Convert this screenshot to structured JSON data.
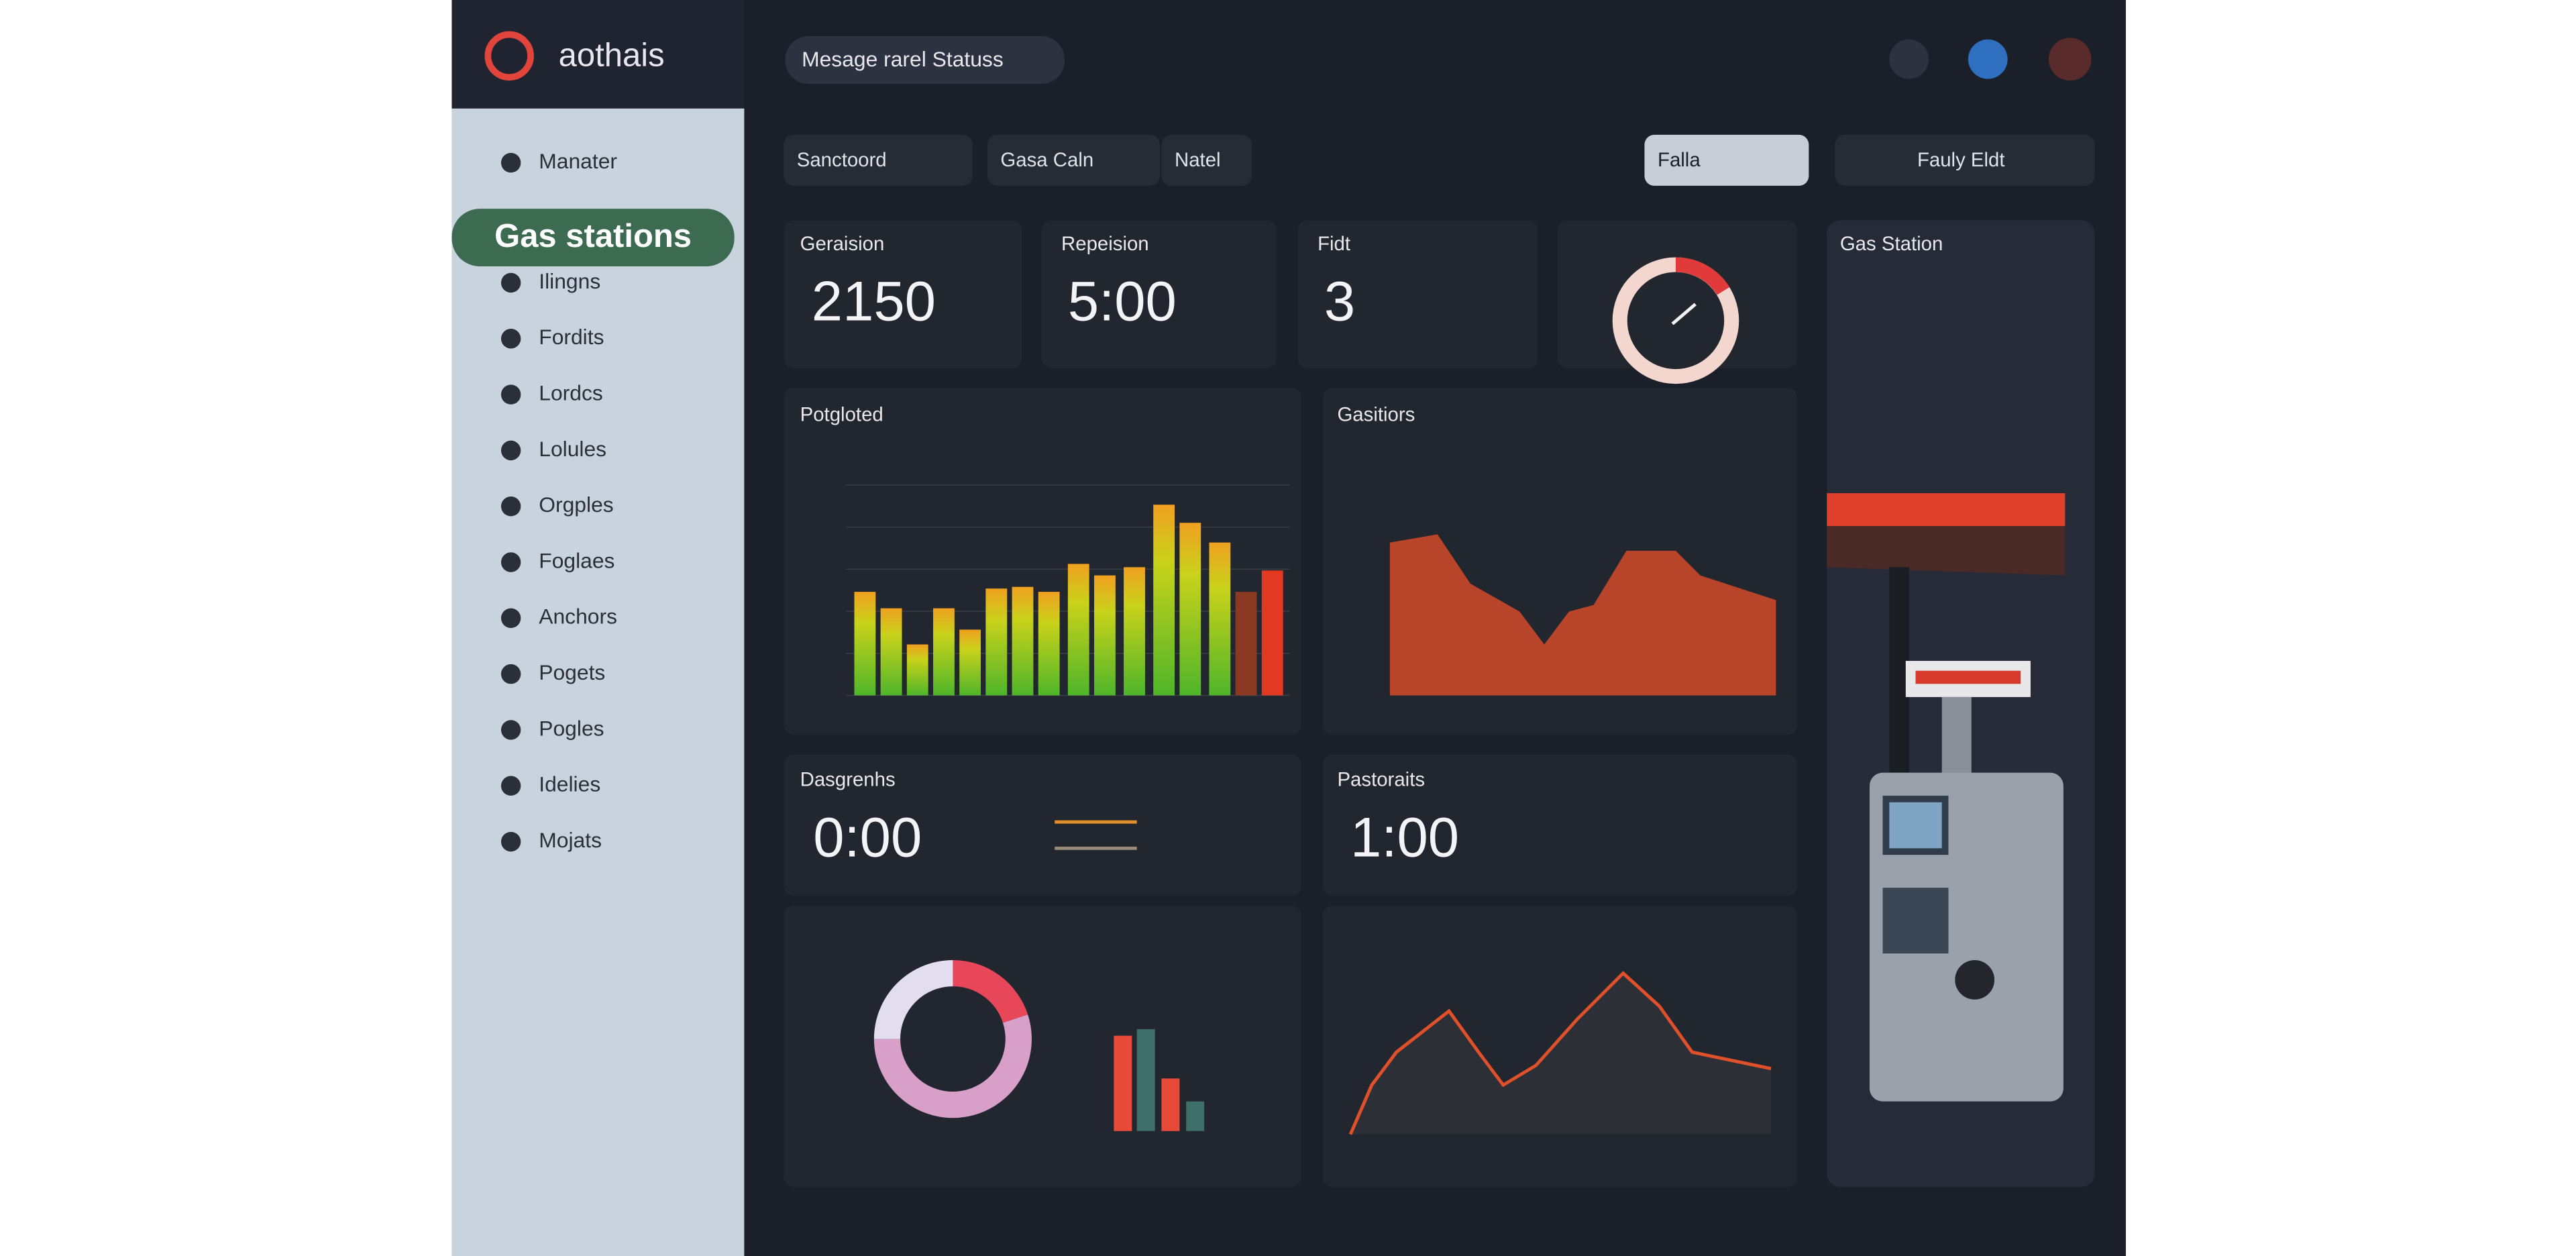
{
  "header": {
    "logo": "aothais",
    "status": "Mesage rarel Statuss"
  },
  "sidebar": {
    "items": [
      "Manater",
      "Gas stations",
      "Ilingns",
      "Fordits",
      "Lordcs",
      "Lolules",
      "Orgples",
      "Foglaes",
      "Anchors",
      "Pogets",
      "Pogles",
      "Idelies",
      "Mojats"
    ]
  },
  "filters": [
    "Sanctoord",
    "Gasa Caln",
    "Natel",
    "Falla",
    "Fauly Eldt"
  ],
  "stats": [
    {
      "title": "Geraision",
      "value": "2150"
    },
    {
      "title": "Repeision",
      "value": "5:00"
    },
    {
      "title": "Fidt",
      "value": "3"
    }
  ],
  "side_panel": {
    "title": "Gas Station"
  },
  "bar_panel": {
    "title": "Potgloted",
    "values": [
      63,
      53,
      31,
      53,
      40,
      65,
      66,
      63,
      80,
      73,
      78,
      116,
      105,
      93,
      63,
      76
    ]
  },
  "area_panel": {
    "title": "Gasitiors",
    "values": [
      93,
      98,
      68,
      51,
      31,
      51,
      55,
      88,
      88,
      73,
      58
    ]
  },
  "time_panels": [
    {
      "title": "Dasgrenhs",
      "value": "0:00"
    },
    {
      "title": "Pastoraits",
      "value": "1:00"
    }
  ],
  "donut": {
    "values": [
      20,
      55,
      25
    ],
    "colors": [
      "#e8475a",
      "#d8a0c8",
      "#e2ddef"
    ]
  },
  "mini_bars": {
    "values": [
      58,
      62,
      32,
      18
    ],
    "colors": [
      "#e84a3a",
      "#3f6f6a",
      "#e84a3a",
      "#3f6f6a"
    ]
  },
  "line_panel": {
    "values": [
      0,
      30,
      50,
      75,
      50,
      30,
      42,
      70,
      98,
      78,
      50,
      40
    ]
  }
}
